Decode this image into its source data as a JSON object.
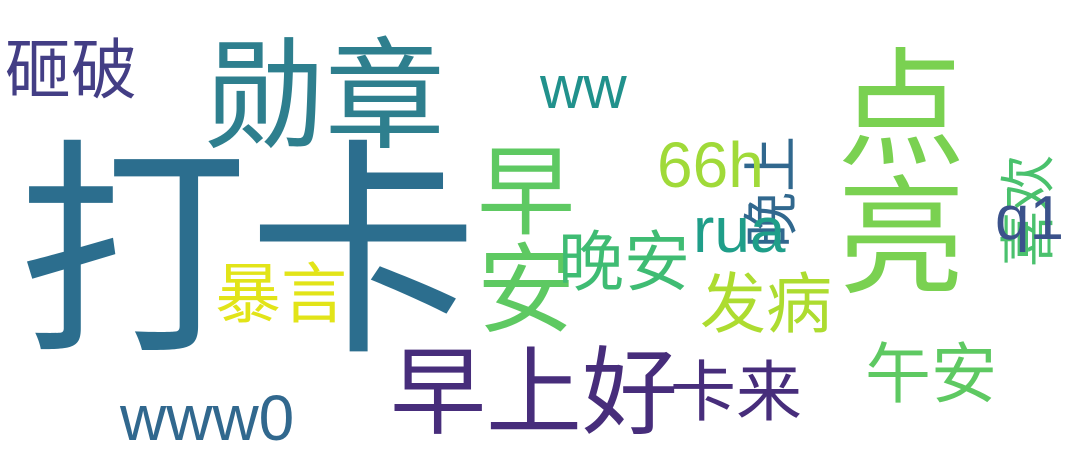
{
  "words": {
    "daka": {
      "text": "打卡",
      "color": "#2c6e8e"
    },
    "xunzhang": {
      "text": "勋章",
      "color": "#2e7f8e"
    },
    "zaoshanghao": {
      "text": "早上好",
      "color": "#472d7b"
    },
    "dianliang": {
      "text": "点亮",
      "color": "#7ad151"
    },
    "zaoanwuan": {
      "text": "早安",
      "color": "#5ec962"
    },
    "wanan": {
      "text": "晚安",
      "color": "#3fbc73"
    },
    "zapo": {
      "text": "砸破",
      "color": "#433e85"
    },
    "baoyan": {
      "text": "暴言",
      "color": "#e2e418"
    },
    "fabing": {
      "text": "发病",
      "color": "#addc30"
    },
    "kalai": {
      "text": "卡来",
      "color": "#472d7b"
    },
    "wuan": {
      "text": "午安",
      "color": "#5ec962"
    },
    "wanshang": {
      "text": "晚上",
      "color": "#31688e"
    },
    "xihuan": {
      "text": "喜欢",
      "color": "#4ac16d"
    },
    "ww": {
      "text": "ww",
      "color": "#21918c"
    },
    "h66": {
      "text": "66h",
      "color": "#a0da39"
    },
    "rua": {
      "text": "rua",
      "color": "#1f9e89"
    },
    "q1": {
      "text": "q1",
      "color": "#3b528b"
    },
    "www0": {
      "text": "www0",
      "color": "#31688e"
    }
  }
}
